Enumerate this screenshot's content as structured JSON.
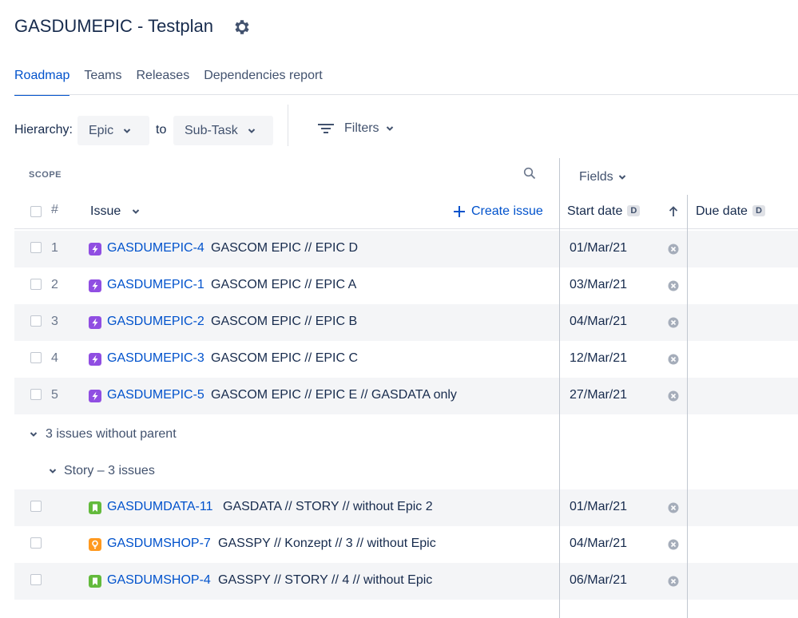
{
  "page": {
    "title": "GASDUMEPIC - Testplan"
  },
  "tabs": [
    {
      "label": "Roadmap",
      "active": true
    },
    {
      "label": "Teams",
      "active": false
    },
    {
      "label": "Releases",
      "active": false
    },
    {
      "label": "Dependencies report",
      "active": false
    }
  ],
  "hierarchy": {
    "label": "Hierarchy:",
    "from": "Epic",
    "to_label": "to",
    "to": "Sub-Task"
  },
  "filters": {
    "label": "Filters"
  },
  "scope": {
    "label": "SCOPE"
  },
  "fields": {
    "label": "Fields"
  },
  "columns": {
    "num": "#",
    "issue": "Issue",
    "create": "Create issue",
    "start_date": "Start date",
    "start_badge": "D",
    "due_date": "Due date",
    "due_badge": "D"
  },
  "colors": {
    "epic": "#904ee2",
    "story": "#63ba3c",
    "improvement": "#ff991f",
    "link": "#0052cc"
  },
  "rows": [
    {
      "num": "1",
      "key": "GASDUMEPIC-4",
      "summary": "GASCOM EPIC // EPIC D",
      "start": "01/Mar/21",
      "type": "epic-icon"
    },
    {
      "num": "2",
      "key": "GASDUMEPIC-1",
      "summary": "GASCOM EPIC // EPIC A",
      "start": "03/Mar/21",
      "type": "epic-icon"
    },
    {
      "num": "3",
      "key": "GASDUMEPIC-2",
      "summary": "GASCOM EPIC // EPIC B",
      "start": "04/Mar/21",
      "type": "epic-icon"
    },
    {
      "num": "4",
      "key": "GASDUMEPIC-3",
      "summary": "GASCOM EPIC // EPIC C",
      "start": "12/Mar/21",
      "type": "epic-icon"
    },
    {
      "num": "5",
      "key": "GASDUMEPIC-5",
      "summary": "GASCOM EPIC // EPIC E // GASDATA only",
      "start": "27/Mar/21",
      "type": "epic-icon"
    }
  ],
  "group": {
    "label": "3 issues without parent",
    "sub_label": "Story – 3 issues"
  },
  "orphans": [
    {
      "key": "GASDUMDATA-11",
      "summary": "GASDATA // STORY // without Epic 2",
      "start": "01/Mar/21",
      "type": "story-icon"
    },
    {
      "key": "GASDUMSHOP-7",
      "summary": "GASSPY // Konzept // 3 // without Epic",
      "start": "04/Mar/21",
      "type": "lightbulb-icon"
    },
    {
      "key": "GASDUMSHOP-4",
      "summary": "GASSPY // STORY // 4 // without Epic",
      "start": "06/Mar/21",
      "type": "story-icon"
    }
  ]
}
